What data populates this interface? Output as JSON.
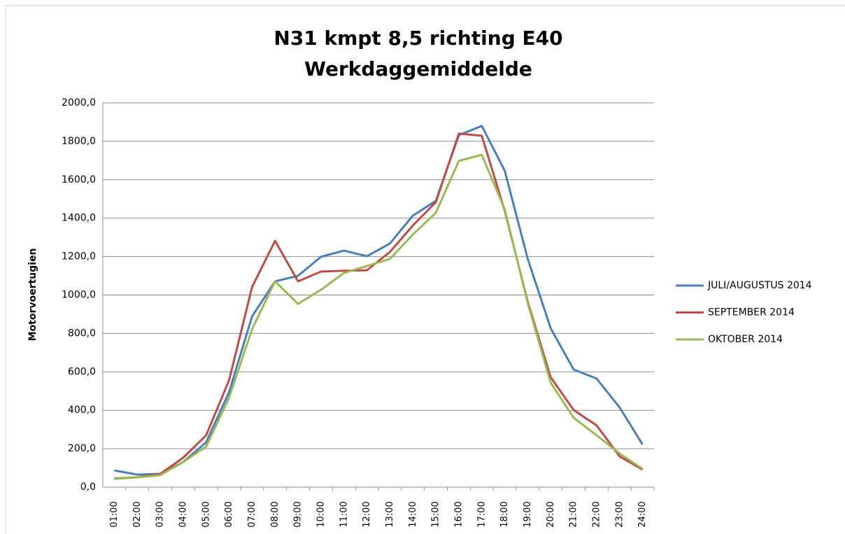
{
  "chart_data": {
    "type": "line",
    "title": "N31 kmpt 8,5 richting E40",
    "subtitle": "Werkdaggemiddelde",
    "y_label": "Motorvoertugien",
    "categories": [
      "01:00",
      "02:00",
      "03:00",
      "04:00",
      "05:00",
      "06:00",
      "07:00",
      "08:00",
      "09:00",
      "10:00",
      "11:00",
      "12:00",
      "13:00",
      "14:00",
      "15:00",
      "16:00",
      "17:00",
      "18:00",
      "19:00",
      "20:00",
      "21:00",
      "22:00",
      "23:00",
      "24:00"
    ],
    "series": [
      {
        "name": "JULI/AUGUSTUS 2014",
        "color": "#4a7ebb",
        "values": [
          87,
          65,
          69,
          131,
          233,
          495,
          889,
          1071,
          1100,
          1199,
          1231,
          1202,
          1268,
          1413,
          1490,
          1832,
          1880,
          1647,
          1188,
          827,
          612,
          565,
          415,
          222
        ]
      },
      {
        "name": "SEPTEMBER 2014",
        "color": "#be4b48",
        "values": [
          44,
          51,
          69,
          153,
          270,
          557,
          1042,
          1282,
          1071,
          1122,
          1126,
          1129,
          1224,
          1362,
          1483,
          1840,
          1829,
          1439,
          965,
          572,
          401,
          321,
          160,
          91
        ]
      },
      {
        "name": "OKTOBER 2014",
        "color": "#98b954",
        "values": [
          47,
          51,
          62,
          131,
          211,
          466,
          823,
          1071,
          954,
          1027,
          1115,
          1151,
          1188,
          1315,
          1428,
          1698,
          1730,
          1446,
          958,
          543,
          361,
          270,
          175,
          95
        ]
      }
    ],
    "ylim": [
      0,
      2000
    ],
    "yticks": [
      {
        "value": 0,
        "label": "0,0"
      },
      {
        "value": 200,
        "label": "200,0"
      },
      {
        "value": 400,
        "label": "400,0"
      },
      {
        "value": 600,
        "label": "600,0"
      },
      {
        "value": 800,
        "label": "800,0"
      },
      {
        "value": 1000,
        "label": "1000,0"
      },
      {
        "value": 1200,
        "label": "1200,0"
      },
      {
        "value": 1400,
        "label": "1400,0"
      },
      {
        "value": 1600,
        "label": "1600,0"
      },
      {
        "value": 1800,
        "label": "1800,0"
      },
      {
        "value": 2000,
        "label": "2000,0"
      }
    ],
    "grid": true,
    "legend": "right"
  }
}
